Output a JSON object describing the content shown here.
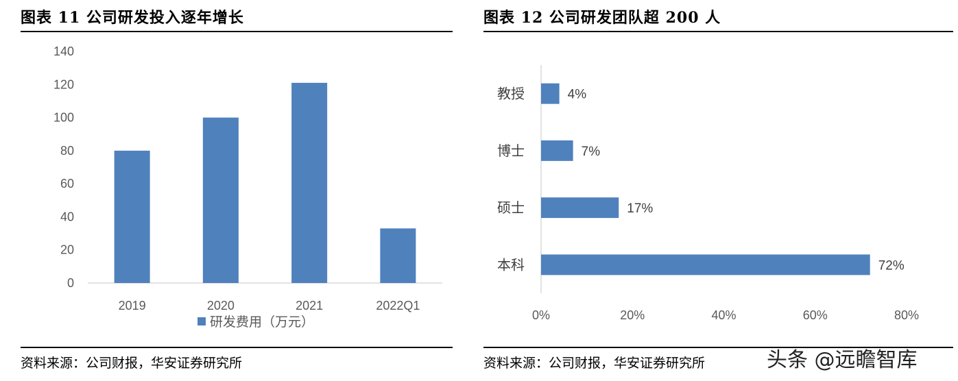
{
  "left": {
    "title": "图表 11  公司研发投入逐年增长",
    "source": "资料来源：公司财报，华安证券研究所"
  },
  "right": {
    "title": "图表 12  公司研发团队超 200 人",
    "source": "资料来源：公司财报，华安证券研究所"
  },
  "watermark": "头条 @远瞻智库",
  "colors": {
    "bar": "#4f81bd",
    "axis": "#d9d9d9"
  },
  "chart_data": [
    {
      "type": "bar",
      "categories": [
        "2019",
        "2020",
        "2021",
        "2022Q1"
      ],
      "series": [
        {
          "name": "研发费用（万元）",
          "values": [
            80,
            100,
            121,
            33
          ]
        }
      ],
      "yticks": [
        "0",
        "20",
        "40",
        "60",
        "80",
        "100",
        "120",
        "140"
      ],
      "ylim": [
        0,
        140
      ],
      "legend": "bottom",
      "grid": false
    },
    {
      "type": "bar",
      "orientation": "horizontal",
      "categories": [
        "教授",
        "博士",
        "硕士",
        "本科"
      ],
      "values": [
        4,
        7,
        17,
        72
      ],
      "data_labels": [
        "4%",
        "7%",
        "17%",
        "72%"
      ],
      "xticks": [
        "0%",
        "20%",
        "40%",
        "60%",
        "80%"
      ],
      "xlim": [
        0,
        80
      ],
      "grid": false
    }
  ]
}
